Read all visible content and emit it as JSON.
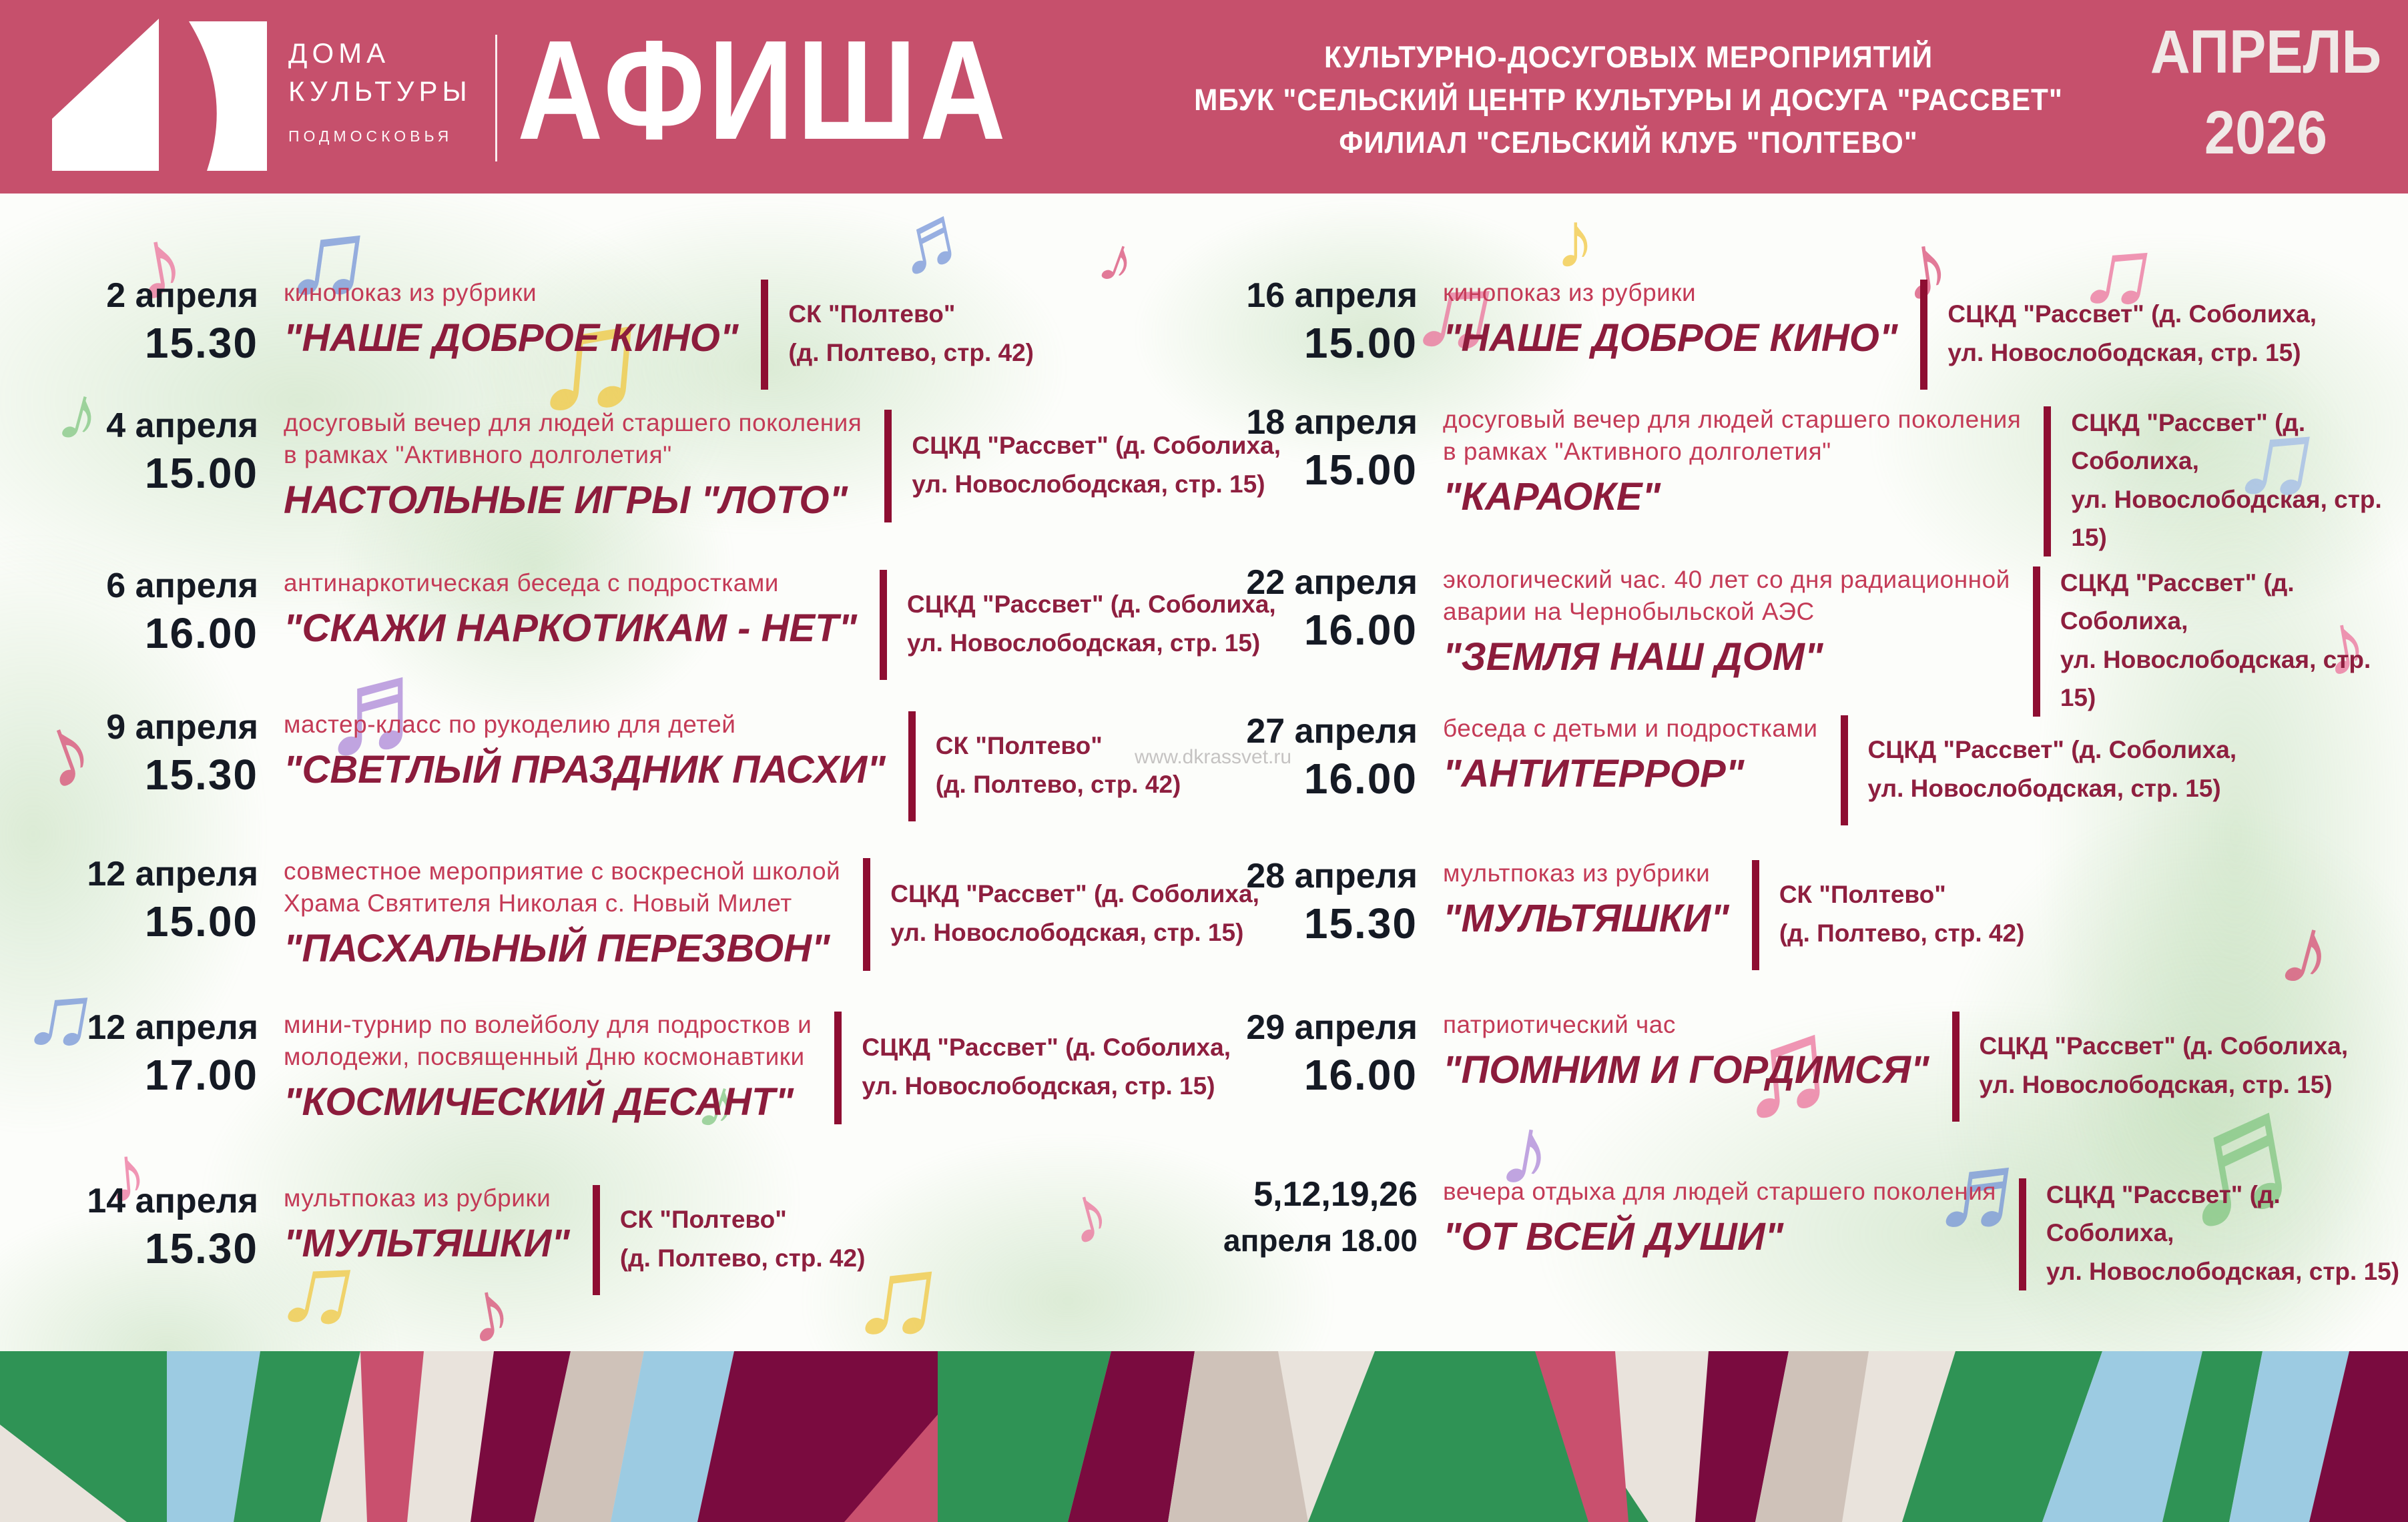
{
  "colors": {
    "header_bg": "#c6506c",
    "header_text": "#ffffff",
    "date_text": "#151a24",
    "description_text": "#c43b57",
    "title_text": "#8c1c3c",
    "venue_text": "#8e1f3f",
    "divider_bar": "#8e0e32",
    "watermark_text": "#bcb9b9",
    "footer_palette": {
      "green": "#2f9355",
      "light_blue": "#9ccbe2",
      "rose": "#c9506e",
      "beige": "#e9e3dc",
      "maroon": "#7a0b3f",
      "taupe": "#cfc2b9"
    }
  },
  "header": {
    "logo": {
      "line1": "ДОМА",
      "line2": "КУЛЬТУРЫ",
      "line3": "ПОДМОСКОВЬЯ"
    },
    "title": "АФИША",
    "subtitle_line1": "КУЛЬТУРНО-ДОСУГОВЫХ МЕРОПРИЯТИЙ",
    "subtitle_line2": "МБУК \"СЕЛЬСКИЙ ЦЕНТР КУЛЬТУРЫ И ДОСУГА \"РАССВЕТ\"",
    "subtitle_line3": "ФИЛИАЛ \"СЕЛЬСКИЙ КЛУБ \"ПОЛТЕВО\"",
    "month": "АПРЕЛЬ",
    "year": "2026"
  },
  "watermark": "www.dkrassvet.ru",
  "events": {
    "left": [
      {
        "date": "2 апреля",
        "time": "15.30",
        "desc1": "кинопоказ из рубрики",
        "desc2": "",
        "title": "\"НАШЕ ДОБРОЕ КИНО\"",
        "venue1": "СК \"Полтево\"",
        "venue2": "(д. Полтево, стр. 42)"
      },
      {
        "date": "4 апреля",
        "time": "15.00",
        "desc1": "досуговый вечер для людей старшего поколения",
        "desc2": "в рамках \"Активного долголетия\"",
        "title": "НАСТОЛЬНЫЕ ИГРЫ \"ЛОТО\"",
        "venue1": "СЦКД \"Рассвет\" (д. Соболиха,",
        "venue2": "ул. Новослободская, стр. 15)"
      },
      {
        "date": "6 апреля",
        "time": "16.00",
        "desc1": "антинаркотическая беседа с подростками",
        "desc2": "",
        "title": "\"СКАЖИ НАРКОТИКАМ - НЕТ\"",
        "venue1": "СЦКД \"Рассвет\" (д. Соболиха,",
        "venue2": "ул. Новослободская, стр. 15)"
      },
      {
        "date": "9 апреля",
        "time": "15.30",
        "desc1": "мастер-класс по рукоделию для детей",
        "desc2": "",
        "title": "\"СВЕТЛЫЙ ПРАЗДНИК ПАСХИ\"",
        "venue1": "СК \"Полтево\"",
        "venue2": "(д. Полтево, стр. 42)"
      },
      {
        "date": "12 апреля",
        "time": "15.00",
        "desc1": "совместное мероприятие с воскресной школой",
        "desc2": "Храма Святителя Николая с. Новый Милет",
        "title": "\"ПАСХАЛЬНЫЙ ПЕРЕЗВОН\"",
        "venue1": "СЦКД \"Рассвет\" (д. Соболиха,",
        "venue2": "ул. Новослободская, стр. 15)"
      },
      {
        "date": "12 апреля",
        "time": "17.00",
        "desc1": "мини-турнир по волейболу для подростков и",
        "desc2": "молодежи, посвященный Дню космонавтики",
        "title": "\"КОСМИЧЕСКИЙ ДЕСАНТ\"",
        "venue1": "СЦКД \"Рассвет\" (д. Соболиха,",
        "venue2": "ул. Новослободская, стр. 15)"
      },
      {
        "date": "14 апреля",
        "time": "15.30",
        "desc1": "мультпоказ из рубрики",
        "desc2": "",
        "title": "\"МУЛЬТЯШКИ\"",
        "venue1": "СК \"Полтево\"",
        "venue2": "(д. Полтево, стр. 42)"
      }
    ],
    "right": [
      {
        "date": "16 апреля",
        "time": "15.00",
        "desc1": "кинопоказ из рубрики",
        "desc2": "",
        "title": "\"НАШЕ ДОБРОЕ КИНО\"",
        "venue1": "СЦКД \"Рассвет\" (д. Соболиха,",
        "venue2": "ул. Новослободская, стр. 15)"
      },
      {
        "date": "18 апреля",
        "time": "15.00",
        "desc1": "досуговый вечер для людей старшего поколения",
        "desc2": "в рамках \"Активного долголетия\"",
        "title": "\"КАРАОКЕ\"",
        "venue1": "СЦКД \"Рассвет\" (д. Соболиха,",
        "venue2": "ул. Новослободская, стр. 15)"
      },
      {
        "date": "22 апреля",
        "time": "16.00",
        "desc1": "экологический час. 40 лет со дня радиационной",
        "desc2": "аварии на Чернобыльской АЭС",
        "title": "\"ЗЕМЛЯ НАШ ДОМ\"",
        "venue1": "СЦКД \"Рассвет\" (д. Соболиха,",
        "venue2": "ул. Новослободская, стр. 15)"
      },
      {
        "date": "27 апреля",
        "time": "16.00",
        "desc1": "беседа с детьми и подростками",
        "desc2": "",
        "title": "\"АНТИТЕРРОР\"",
        "venue1": "СЦКД \"Рассвет\" (д. Соболиха,",
        "venue2": "ул. Новослободская, стр. 15)"
      },
      {
        "date": "28 апреля",
        "time": "15.30",
        "desc1": "мультпоказ из рубрики",
        "desc2": "",
        "title": "\"МУЛЬТЯШКИ\"",
        "venue1": "СК \"Полтево\"",
        "venue2": "(д. Полтево, стр. 42)"
      },
      {
        "date": "29 апреля",
        "time": "16.00",
        "desc1": "патриотический час",
        "desc2": "",
        "title": "\"ПОМНИМ И ГОРДИМСЯ\"",
        "venue1": "СЦКД \"Рассвет\" (д. Соболиха,",
        "venue2": "ул. Новослободская, стр. 15)"
      },
      {
        "date": "5,12,19,26",
        "time": "апреля 18.00",
        "desc1": "вечера отдыха для людей старшего поколения",
        "desc2": "",
        "title": "\"ОТ ВСЕЙ ДУШИ\"",
        "venue1": "СЦКД \"Рассвет\" (д. Соболиха,",
        "venue2": "ул. Новослободская, стр. 15)"
      }
    ]
  },
  "decor": {
    "note_glyphs": [
      "♪",
      "♫",
      "♬"
    ]
  }
}
